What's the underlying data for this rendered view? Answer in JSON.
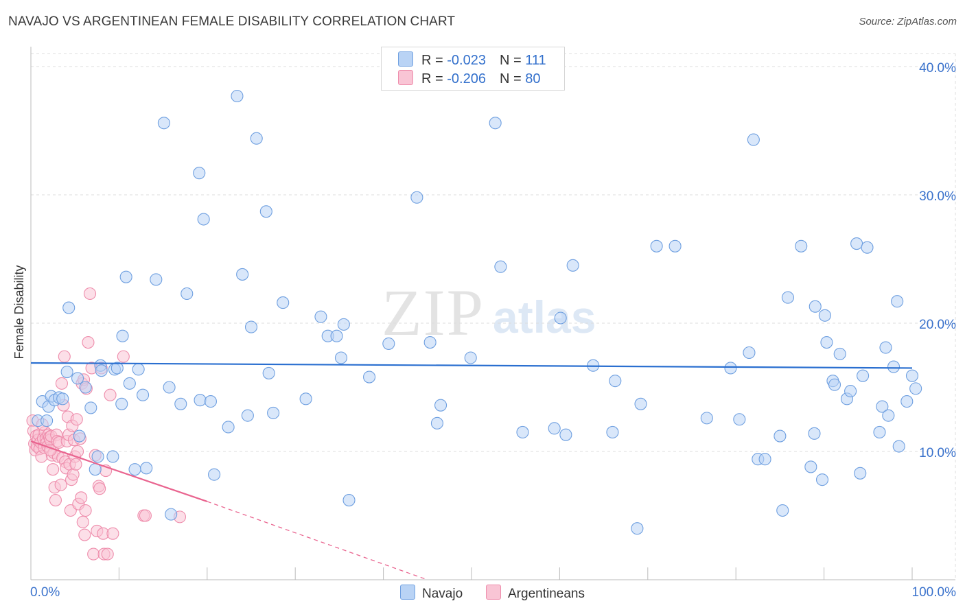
{
  "header": {
    "title": "NAVAJO VS ARGENTINEAN FEMALE DISABILITY CORRELATION CHART",
    "source": "Source: ZipAtlas.com"
  },
  "watermark": {
    "zip": "ZIP",
    "atlas": "atlas"
  },
  "legend": {
    "rows": [
      {
        "r_label": "R = ",
        "r_value": "-0.023",
        "n_label": "N = ",
        "n_value": "111"
      },
      {
        "r_label": "R = ",
        "r_value": "-0.206",
        "n_label": "N = ",
        "n_value": "80"
      }
    ]
  },
  "bottom_legend": {
    "navajo": "Navajo",
    "argentineans": "Argentineans"
  },
  "colors": {
    "navajo_fill": "#b9d3f5",
    "navajo_stroke": "#6e9fe0",
    "navajo_line": "#2a6fd0",
    "arg_fill": "#f9c5d5",
    "arg_stroke": "#ee8cab",
    "arg_line": "#e9648f",
    "axis_text": "#3a72cc",
    "grid": "#dddddd"
  },
  "chart_data": {
    "type": "scatter",
    "title": "NAVAJO VS ARGENTINEAN FEMALE DISABILITY CORRELATION CHART",
    "xlabel": "",
    "ylabel": "Female Disability",
    "xlim": [
      0,
      100
    ],
    "ylim": [
      0,
      40
    ],
    "x_tick_labels": [
      "0.0%",
      "100.0%"
    ],
    "y_ticks": [
      10,
      20,
      30,
      40
    ],
    "y_tick_labels": [
      "10.0%",
      "20.0%",
      "30.0%",
      "40.0%"
    ],
    "grid": true,
    "series": [
      {
        "name": "Navajo",
        "r": -0.023,
        "n": 111,
        "trend": {
          "x": [
            0,
            100
          ],
          "y": [
            16.9,
            16.5
          ],
          "style": "solid"
        },
        "points": [
          [
            0.8,
            12.4
          ],
          [
            1.3,
            13.9
          ],
          [
            1.8,
            12.4
          ],
          [
            2.0,
            13.5
          ],
          [
            2.3,
            14.3
          ],
          [
            2.7,
            14.0
          ],
          [
            3.2,
            14.2
          ],
          [
            3.6,
            14.1
          ],
          [
            4.1,
            16.2
          ],
          [
            4.3,
            21.2
          ],
          [
            5.3,
            15.7
          ],
          [
            5.5,
            11.2
          ],
          [
            6.2,
            15.0
          ],
          [
            6.8,
            13.4
          ],
          [
            7.3,
            8.6
          ],
          [
            7.6,
            9.6
          ],
          [
            7.9,
            16.7
          ],
          [
            8.0,
            16.3
          ],
          [
            9.3,
            9.6
          ],
          [
            9.5,
            16.4
          ],
          [
            9.8,
            16.5
          ],
          [
            10.4,
            19.0
          ],
          [
            10.3,
            13.7
          ],
          [
            10.8,
            23.6
          ],
          [
            11.2,
            15.3
          ],
          [
            11.8,
            8.6
          ],
          [
            12.2,
            16.4
          ],
          [
            12.7,
            14.4
          ],
          [
            13.1,
            8.7
          ],
          [
            14.2,
            23.4
          ],
          [
            15.1,
            35.6
          ],
          [
            15.7,
            15.0
          ],
          [
            15.9,
            5.1
          ],
          [
            17.0,
            13.7
          ],
          [
            17.7,
            22.3
          ],
          [
            19.2,
            14.0
          ],
          [
            19.1,
            31.7
          ],
          [
            19.6,
            28.1
          ],
          [
            20.4,
            13.9
          ],
          [
            20.8,
            8.2
          ],
          [
            22.4,
            11.9
          ],
          [
            23.4,
            37.7
          ],
          [
            24.0,
            23.8
          ],
          [
            24.6,
            12.8
          ],
          [
            25.0,
            19.7
          ],
          [
            25.6,
            34.4
          ],
          [
            26.7,
            28.7
          ],
          [
            27.0,
            16.1
          ],
          [
            27.5,
            13.0
          ],
          [
            28.6,
            21.6
          ],
          [
            31.2,
            14.1
          ],
          [
            32.9,
            20.5
          ],
          [
            33.7,
            19.0
          ],
          [
            34.7,
            19.0
          ],
          [
            35.2,
            17.3
          ],
          [
            35.5,
            19.9
          ],
          [
            36.1,
            6.2
          ],
          [
            38.4,
            15.8
          ],
          [
            40.6,
            18.4
          ],
          [
            43.8,
            29.8
          ],
          [
            45.3,
            18.5
          ],
          [
            46.1,
            12.2
          ],
          [
            46.5,
            13.6
          ],
          [
            49.9,
            17.3
          ],
          [
            52.7,
            35.6
          ],
          [
            53.3,
            24.4
          ],
          [
            55.8,
            11.5
          ],
          [
            59.4,
            11.8
          ],
          [
            60.1,
            20.4
          ],
          [
            60.7,
            11.3
          ],
          [
            61.5,
            24.5
          ],
          [
            63.8,
            16.7
          ],
          [
            66.0,
            11.5
          ],
          [
            66.3,
            15.5
          ],
          [
            68.8,
            4.0
          ],
          [
            69.2,
            13.7
          ],
          [
            71.0,
            26.0
          ],
          [
            73.1,
            26.0
          ],
          [
            76.7,
            12.6
          ],
          [
            79.4,
            16.5
          ],
          [
            80.4,
            12.5
          ],
          [
            81.5,
            17.7
          ],
          [
            82.0,
            34.3
          ],
          [
            82.5,
            9.4
          ],
          [
            83.3,
            9.4
          ],
          [
            85.0,
            11.2
          ],
          [
            85.3,
            5.4
          ],
          [
            85.9,
            22.0
          ],
          [
            87.4,
            26.0
          ],
          [
            88.5,
            8.8
          ],
          [
            88.9,
            11.4
          ],
          [
            89.0,
            21.3
          ],
          [
            89.8,
            7.8
          ],
          [
            90.1,
            20.6
          ],
          [
            90.3,
            18.5
          ],
          [
            91.0,
            15.5
          ],
          [
            91.2,
            15.2
          ],
          [
            91.8,
            17.6
          ],
          [
            92.6,
            14.1
          ],
          [
            93.0,
            14.7
          ],
          [
            93.7,
            26.2
          ],
          [
            94.1,
            8.3
          ],
          [
            94.4,
            15.9
          ],
          [
            94.9,
            25.9
          ],
          [
            96.3,
            11.5
          ],
          [
            96.6,
            13.5
          ],
          [
            97.0,
            18.1
          ],
          [
            97.3,
            12.8
          ],
          [
            97.9,
            16.6
          ],
          [
            98.3,
            21.7
          ],
          [
            98.5,
            10.4
          ],
          [
            99.4,
            13.9
          ],
          [
            100.0,
            15.9
          ],
          [
            100.4,
            14.9
          ]
        ]
      },
      {
        "name": "Argentineans",
        "r": -0.206,
        "n": 80,
        "trend": {
          "x": [
            0,
            20
          ],
          "y": [
            10.8,
            6.1
          ],
          "style": "solid",
          "dashed_extension_to": [
            45,
            0
          ]
        },
        "points": [
          [
            0.2,
            12.4
          ],
          [
            0.3,
            11.6
          ],
          [
            0.4,
            10.6
          ],
          [
            0.5,
            10.1
          ],
          [
            0.6,
            11.2
          ],
          [
            0.7,
            10.4
          ],
          [
            0.8,
            10.9
          ],
          [
            0.9,
            11.3
          ],
          [
            1.0,
            10.2
          ],
          [
            1.1,
            10.7
          ],
          [
            1.2,
            9.6
          ],
          [
            1.4,
            11.0
          ],
          [
            1.5,
            10.3
          ],
          [
            1.6,
            11.5
          ],
          [
            1.7,
            11.0
          ],
          [
            1.8,
            10.7
          ],
          [
            1.9,
            10.4
          ],
          [
            2.0,
            11.3
          ],
          [
            2.1,
            11.1
          ],
          [
            2.2,
            10.9
          ],
          [
            2.3,
            11.2
          ],
          [
            2.4,
            9.7
          ],
          [
            2.5,
            8.6
          ],
          [
            2.6,
            9.9
          ],
          [
            2.7,
            7.2
          ],
          [
            2.8,
            6.2
          ],
          [
            2.9,
            11.3
          ],
          [
            3.0,
            10.8
          ],
          [
            3.1,
            9.6
          ],
          [
            3.2,
            10.7
          ],
          [
            3.4,
            7.4
          ],
          [
            3.5,
            15.3
          ],
          [
            3.6,
            9.5
          ],
          [
            3.7,
            13.6
          ],
          [
            3.8,
            17.4
          ],
          [
            3.9,
            9.2
          ],
          [
            4.0,
            8.7
          ],
          [
            4.1,
            10.8
          ],
          [
            4.2,
            12.7
          ],
          [
            4.3,
            11.3
          ],
          [
            4.4,
            9.0
          ],
          [
            4.5,
            5.4
          ],
          [
            4.6,
            7.8
          ],
          [
            4.7,
            12.0
          ],
          [
            4.8,
            8.2
          ],
          [
            4.9,
            10.9
          ],
          [
            5.0,
            9.6
          ],
          [
            5.1,
            9.0
          ],
          [
            5.2,
            12.5
          ],
          [
            5.3,
            10.0
          ],
          [
            5.4,
            5.9
          ],
          [
            5.6,
            11.0
          ],
          [
            5.7,
            6.4
          ],
          [
            5.8,
            15.3
          ],
          [
            5.9,
            4.5
          ],
          [
            6.0,
            15.6
          ],
          [
            6.1,
            3.5
          ],
          [
            6.2,
            5.4
          ],
          [
            6.3,
            14.9
          ],
          [
            6.5,
            18.5
          ],
          [
            6.7,
            22.3
          ],
          [
            6.9,
            16.5
          ],
          [
            7.1,
            2.0
          ],
          [
            7.3,
            9.7
          ],
          [
            7.5,
            3.8
          ],
          [
            7.7,
            7.3
          ],
          [
            7.8,
            7.1
          ],
          [
            8.0,
            16.5
          ],
          [
            8.2,
            3.6
          ],
          [
            8.3,
            2.0
          ],
          [
            8.5,
            8.5
          ],
          [
            8.7,
            2.0
          ],
          [
            9.0,
            14.4
          ],
          [
            9.3,
            3.6
          ],
          [
            10.5,
            17.4
          ],
          [
            12.8,
            5.0
          ],
          [
            13.0,
            5.0
          ],
          [
            16.9,
            4.9
          ],
          [
            1.3,
            12.1
          ],
          [
            2.2,
            10.1
          ]
        ]
      }
    ]
  }
}
